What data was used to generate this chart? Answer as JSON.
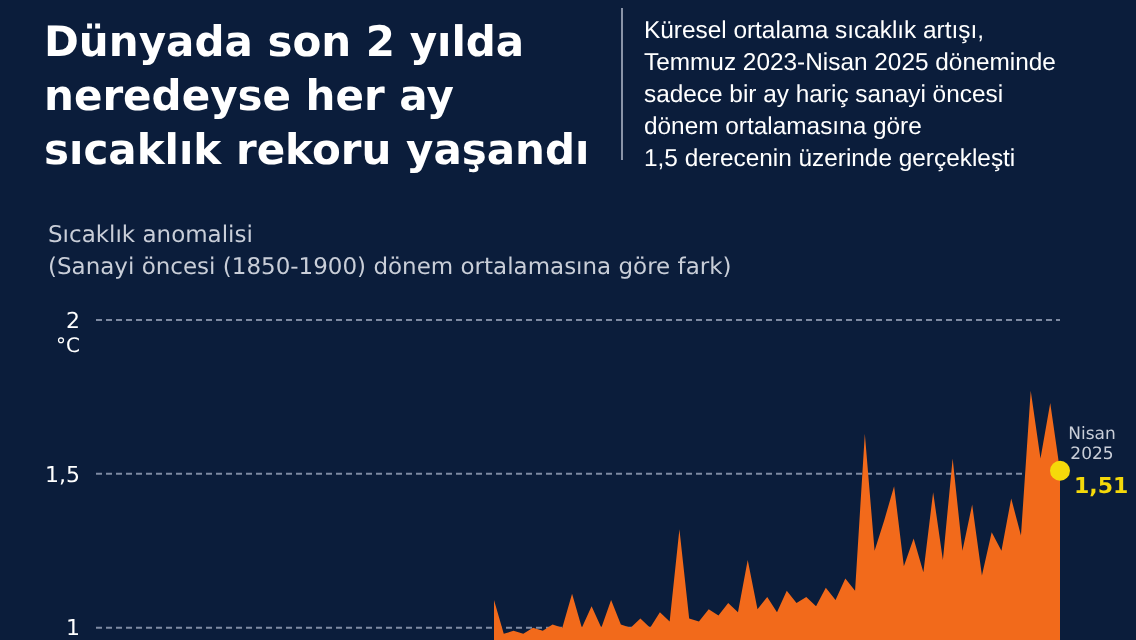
{
  "chart_data": {
    "type": "area",
    "title": "Dünyada son 2 yılda neredeyse her ay sıcaklık rekoru yaşandı",
    "subtitle": "Küresel ortalama sıcaklık artışı,\nTemmuz 2023-Nisan 2025 döneminde\nsadece bir ay hariç sanayi öncesi\ndönem ortalamasına göre\n1,5 derecenin üzerinde gerçekleşti",
    "ylabel": "Sıcaklık anomalisi\n(Sanayi öncesi (1850-1900) dönem ortalamasına göre fark)",
    "annotations": [
      "°C",
      "Nisan\n2025"
    ],
    "categories": [
      null,
      null,
      null,
      null,
      null,
      null,
      null,
      null,
      null,
      null,
      null,
      null,
      null,
      null,
      null,
      null,
      null,
      null,
      null,
      null,
      null,
      null,
      null,
      null,
      null,
      null,
      null,
      null,
      null,
      null,
      null,
      null,
      null,
      null,
      null,
      null,
      null,
      null,
      null,
      null,
      null,
      null,
      null,
      null,
      null,
      null,
      null,
      null,
      null,
      null,
      null,
      null,
      null,
      null,
      null,
      null,
      null,
      null,
      null
    ],
    "series": [
      {
        "color": "#f26a1b",
        "values": [
          1.09,
          0.98,
          0.99,
          0.98,
          1.0,
          0.99,
          1.01,
          1.0,
          1.11,
          1.0,
          1.07,
          1.0,
          1.09,
          1.01,
          1.0,
          1.03,
          1.0,
          1.05,
          1.02,
          1.32,
          1.03,
          1.02,
          1.06,
          1.04,
          1.08,
          1.05,
          1.22,
          1.06,
          1.1,
          1.05,
          1.12,
          1.08,
          1.1,
          1.07,
          1.13,
          1.09,
          1.16,
          1.12,
          1.63,
          1.25,
          1.35,
          1.46,
          1.2,
          1.29,
          1.18,
          1.44,
          1.22,
          1.55,
          1.25,
          1.4,
          1.17,
          1.31,
          1.25,
          1.42,
          1.3,
          1.77,
          1.55,
          1.73,
          1.51
        ]
      },
      {
        "type": "scatter",
        "color": "#f5d90a",
        "values": [
          null,
          null,
          null,
          null,
          null,
          null,
          null,
          null,
          null,
          null,
          null,
          null,
          null,
          null,
          null,
          null,
          null,
          null,
          null,
          null,
          null,
          null,
          null,
          null,
          null,
          null,
          null,
          null,
          null,
          null,
          null,
          null,
          null,
          null,
          null,
          null,
          null,
          null,
          null,
          null,
          null,
          null,
          null,
          null,
          null,
          null,
          null,
          null,
          null,
          null,
          null,
          null,
          null,
          null,
          null,
          null,
          null,
          null,
          1.51
        ],
        "value_labels": [
          null,
          null,
          null,
          null,
          null,
          null,
          null,
          null,
          null,
          null,
          null,
          null,
          null,
          null,
          null,
          null,
          null,
          null,
          null,
          null,
          null,
          null,
          null,
          null,
          null,
          null,
          null,
          null,
          null,
          null,
          null,
          null,
          null,
          null,
          null,
          null,
          null,
          null,
          null,
          null,
          null,
          null,
          null,
          null,
          null,
          null,
          null,
          null,
          null,
          null,
          null,
          null,
          null,
          null,
          null,
          null,
          null,
          null,
          "1,51"
        ]
      }
    ],
    "ylim": [
      0.96,
      2
    ],
    "yticks": [
      {
        "value": 1,
        "label": "1"
      },
      {
        "value": 1.5,
        "label": "1,5"
      },
      {
        "value": 2,
        "label": "2"
      }
    ],
    "grid": "y",
    "tick_labels": "y"
  }
}
